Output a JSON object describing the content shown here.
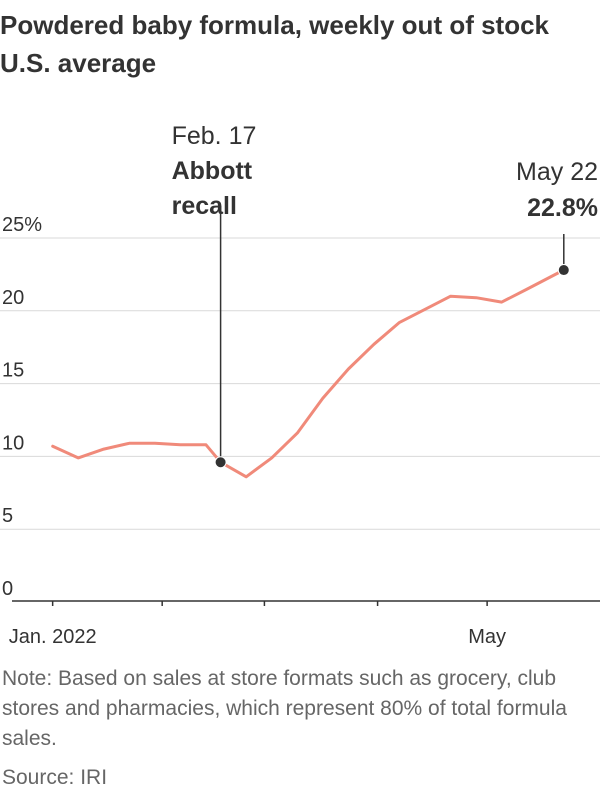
{
  "title": "Powdered baby formula, weekly out of stock",
  "subtitle": "U.S. average",
  "note": "Note: Based on sales at store formats such as grocery, club stores and pharmacies, which represent 80% of total formula sales.",
  "source": "Source: IRI",
  "chart_data": {
    "type": "line",
    "ylim": [
      0,
      25
    ],
    "yticks": [
      0,
      5,
      10,
      15,
      20,
      25
    ],
    "ytick_labels": [
      "0",
      "5",
      "10",
      "15",
      "20",
      "25%"
    ],
    "xticks": [
      {
        "date": "2022-01-02",
        "label": "Jan. 2022"
      },
      {
        "date": "2022-02-01",
        "label": ""
      },
      {
        "date": "2022-03-01",
        "label": ""
      },
      {
        "date": "2022-04-01",
        "label": ""
      },
      {
        "date": "2022-05-01",
        "label": "May"
      }
    ],
    "grid": true,
    "line_color": "#f08a7a",
    "series": [
      {
        "points": [
          {
            "x": "2022-01-02",
            "y": 10.7
          },
          {
            "x": "2022-01-09",
            "y": 9.9
          },
          {
            "x": "2022-01-16",
            "y": 10.5
          },
          {
            "x": "2022-01-23",
            "y": 10.9
          },
          {
            "x": "2022-01-30",
            "y": 10.9
          },
          {
            "x": "2022-02-06",
            "y": 10.8
          },
          {
            "x": "2022-02-13",
            "y": 10.8
          },
          {
            "x": "2022-02-17",
            "y": 9.6
          },
          {
            "x": "2022-02-24",
            "y": 8.6
          },
          {
            "x": "2022-03-03",
            "y": 9.9
          },
          {
            "x": "2022-03-10",
            "y": 11.6
          },
          {
            "x": "2022-03-17",
            "y": 14.0
          },
          {
            "x": "2022-03-24",
            "y": 16.0
          },
          {
            "x": "2022-03-31",
            "y": 17.7
          },
          {
            "x": "2022-04-07",
            "y": 19.2
          },
          {
            "x": "2022-04-14",
            "y": 20.1
          },
          {
            "x": "2022-04-21",
            "y": 21.0
          },
          {
            "x": "2022-04-28",
            "y": 20.9
          },
          {
            "x": "2022-05-05",
            "y": 20.6
          },
          {
            "x": "2022-05-12",
            "y": 21.5
          },
          {
            "x": "2022-05-22",
            "y": 22.8
          }
        ]
      }
    ],
    "annotations": [
      {
        "x": "2022-02-17",
        "y": 9.6,
        "line1": "Feb. 17",
        "line2": "Abbott",
        "line3": "recall"
      },
      {
        "x": "2022-05-22",
        "y": 22.8,
        "line1": "May 22",
        "line2": "22.8%"
      }
    ]
  }
}
